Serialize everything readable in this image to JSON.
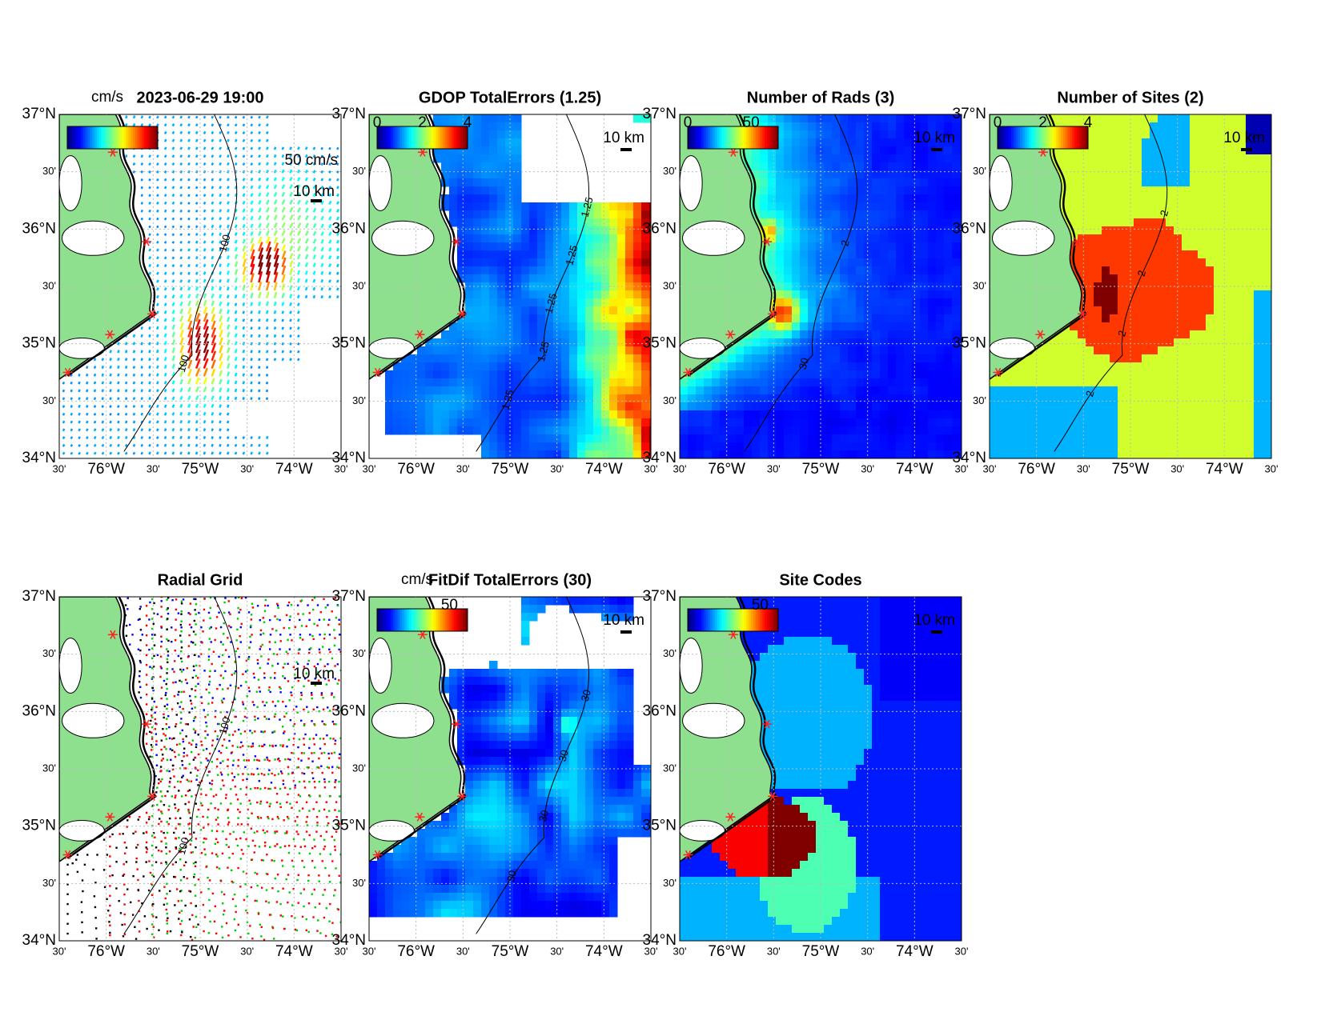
{
  "figure": {
    "lat_labels": [
      "37°N",
      "30'",
      "36°N",
      "30'",
      "35°N",
      "30'",
      "34°N"
    ],
    "lon_labels": [
      "30'",
      "76°W",
      "30'",
      "75°W",
      "30'",
      "74°W",
      "30'"
    ],
    "scale_label": "10 km",
    "panels": [
      {
        "title": "2023-06-29 19:00",
        "colorbar_unit": "cm/s",
        "scale_arrow": "50 cm/s",
        "contour_labels": [
          "100",
          "100"
        ]
      },
      {
        "title": "GDOP TotalErrors (1.25)",
        "colorbar_ticks": [
          "0",
          "2",
          "4"
        ],
        "contour_labels": [
          "1.25",
          "1.25",
          "1.25",
          "1.25",
          "1.25"
        ]
      },
      {
        "title": "Number of Rads (3)",
        "colorbar_ticks": [
          "0",
          "50"
        ],
        "contour_labels": [
          "2",
          "30"
        ]
      },
      {
        "title": "Number of Sites (2)",
        "colorbar_ticks": [
          "0",
          "2",
          "4"
        ],
        "contour_labels": [
          "2",
          "2",
          "2",
          "2"
        ]
      },
      {
        "title": "Radial Grid",
        "contour_labels": [
          "100",
          "100"
        ]
      },
      {
        "title": "FitDif TotalErrors (30)",
        "colorbar_unit": "cm/s",
        "colorbar_ticks": [
          "50"
        ],
        "contour_labels": [
          "30",
          "30",
          "30",
          "30"
        ]
      },
      {
        "title": "Site Codes",
        "colorbar_ticks": [
          "50"
        ]
      }
    ]
  }
}
